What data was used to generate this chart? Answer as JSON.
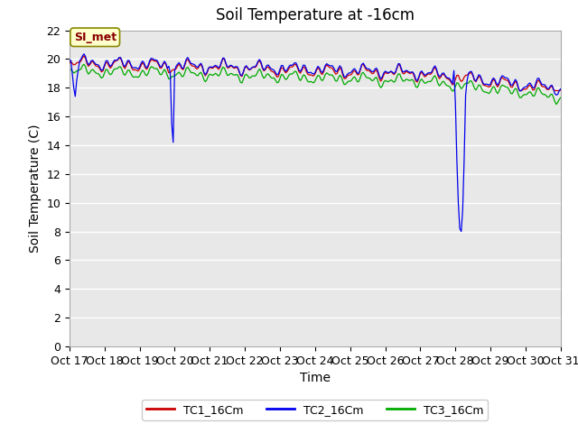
{
  "title": "Soil Temperature at -16cm",
  "xlabel": "Time",
  "ylabel": "Soil Temperature (C)",
  "ylim": [
    0,
    22
  ],
  "xlim": [
    0,
    336
  ],
  "x_tick_labels": [
    "Oct 17",
    "Oct 18",
    "Oct 19",
    "Oct 20",
    "Oct 21",
    "Oct 22",
    "Oct 23",
    "Oct 24",
    "Oct 25",
    "Oct 26",
    "Oct 27",
    "Oct 28",
    "Oct 29",
    "Oct 30",
    "Oct 31"
  ],
  "x_tick_positions": [
    0,
    24,
    48,
    72,
    96,
    120,
    144,
    168,
    192,
    216,
    240,
    264,
    288,
    312,
    336
  ],
  "annotation_text": "SI_met",
  "tc1_color": "#cc0000",
  "tc2_color": "#0000ee",
  "tc3_color": "#00aa00",
  "legend_labels": [
    "TC1_16Cm",
    "TC2_16Cm",
    "TC3_16Cm"
  ],
  "title_fontsize": 12,
  "axis_label_fontsize": 10,
  "tick_fontsize": 9,
  "plot_bg_color": "#e8e8e8",
  "fig_bg_color": "#ffffff",
  "grid_color": "#ffffff",
  "annotation_text_color": "#880000",
  "annotation_bg_color": "#ffffcc",
  "annotation_edge_color": "#888800"
}
